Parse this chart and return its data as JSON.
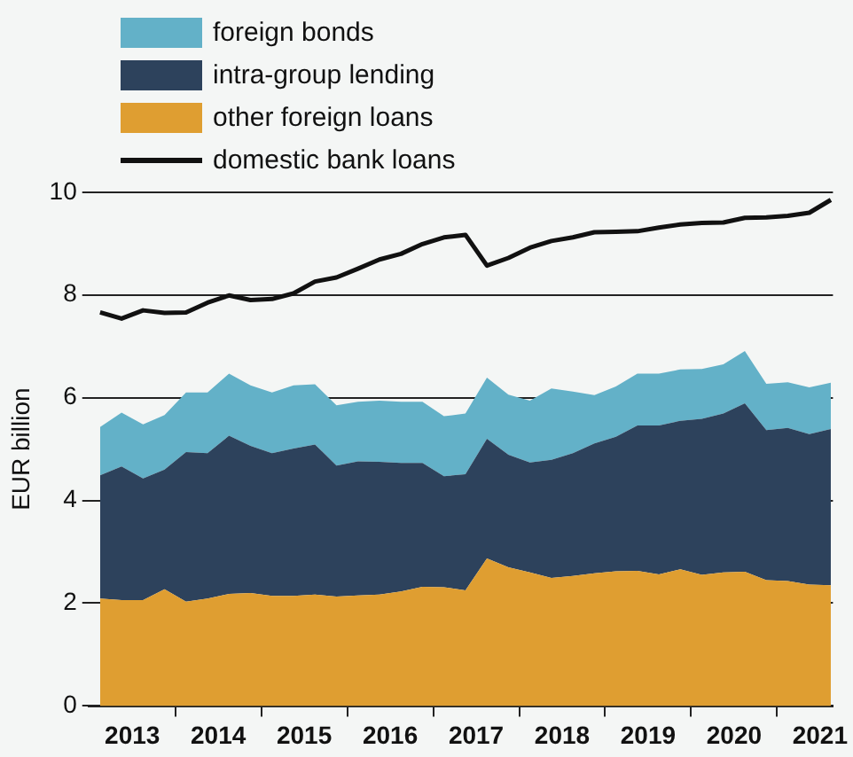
{
  "chart_data": {
    "type": "area",
    "stacked": true,
    "ylabel": "EUR billion",
    "legend": "top left",
    "grid": "y",
    "marker": "none",
    "x": [
      2013.125,
      2013.375,
      2013.625,
      2013.875,
      2014.125,
      2014.375,
      2014.625,
      2014.875,
      2015.125,
      2015.375,
      2015.625,
      2015.875,
      2016.125,
      2016.375,
      2016.625,
      2016.875,
      2017.125,
      2017.375,
      2017.625,
      2017.875,
      2018.125,
      2018.375,
      2018.625,
      2018.875,
      2019.125,
      2019.375,
      2019.625,
      2019.875,
      2020.125,
      2020.375,
      2020.625,
      2020.875,
      2021.125,
      2021.375,
      2021.625
    ],
    "xlim": [
      2013,
      2021.65
    ],
    "xticks": [
      {
        "value": 2013.5,
        "label": "2013"
      },
      {
        "value": 2014,
        "label": null
      },
      {
        "value": 2014.5,
        "label": "2014"
      },
      {
        "value": 2015,
        "label": null
      },
      {
        "value": 2015.5,
        "label": "2015"
      },
      {
        "value": 2016,
        "label": null
      },
      {
        "value": 2016.5,
        "label": "2016"
      },
      {
        "value": 2017,
        "label": null
      },
      {
        "value": 2017.5,
        "label": "2017"
      },
      {
        "value": 2018,
        "label": null
      },
      {
        "value": 2018.5,
        "label": "2018"
      },
      {
        "value": 2019,
        "label": null
      },
      {
        "value": 2019.5,
        "label": "2019"
      },
      {
        "value": 2020,
        "label": null
      },
      {
        "value": 2020.5,
        "label": "2020"
      },
      {
        "value": 2021,
        "label": null
      },
      {
        "value": 2021.5,
        "label": "2021"
      }
    ],
    "ylim": [
      0,
      10
    ],
    "yticks": [
      0,
      2,
      4,
      6,
      8,
      10
    ],
    "series": [
      {
        "name": "other foreign loans",
        "color": "#df9e31",
        "values": [
          2.09,
          2.06,
          2.06,
          2.27,
          2.03,
          2.09,
          2.18,
          2.2,
          2.14,
          2.14,
          2.17,
          2.13,
          2.15,
          2.17,
          2.23,
          2.32,
          2.31,
          2.25,
          2.87,
          2.7,
          2.6,
          2.49,
          2.53,
          2.58,
          2.62,
          2.63,
          2.56,
          2.66,
          2.55,
          2.6,
          2.61,
          2.45,
          2.43,
          2.36,
          2.35
        ]
      },
      {
        "name": "intra-group lending",
        "color": "#2d425c",
        "values": [
          2.4,
          2.6,
          2.37,
          2.33,
          2.91,
          2.83,
          3.08,
          2.86,
          2.78,
          2.87,
          2.92,
          2.55,
          2.61,
          2.58,
          2.5,
          2.41,
          2.16,
          2.26,
          2.33,
          2.19,
          2.14,
          2.3,
          2.39,
          2.53,
          2.62,
          2.83,
          2.9,
          2.89,
          3.04,
          3.09,
          3.28,
          2.92,
          2.98,
          2.93,
          3.04
        ]
      },
      {
        "name": "foreign bonds",
        "color": "#63b1c8",
        "values": [
          0.94,
          1.05,
          1.05,
          1.06,
          1.16,
          1.18,
          1.21,
          1.18,
          1.18,
          1.23,
          1.17,
          1.17,
          1.16,
          1.19,
          1.19,
          1.19,
          1.17,
          1.18,
          1.19,
          1.17,
          1.2,
          1.39,
          1.2,
          0.94,
          0.98,
          1.01,
          1.01,
          1.0,
          0.97,
          0.96,
          1.02,
          0.9,
          0.89,
          0.91,
          0.9
        ]
      },
      {
        "name": "domestic bank loans",
        "type": "line",
        "color": "#111111",
        "values": [
          7.66,
          7.54,
          7.7,
          7.65,
          7.66,
          7.85,
          7.99,
          7.9,
          7.92,
          8.03,
          8.26,
          8.34,
          8.51,
          8.69,
          8.8,
          8.99,
          9.12,
          9.17,
          8.57,
          8.72,
          8.92,
          9.05,
          9.12,
          9.22,
          9.23,
          9.24,
          9.31,
          9.37,
          9.4,
          9.41,
          9.5,
          9.51,
          9.54,
          9.6,
          9.85
        ]
      }
    ]
  }
}
